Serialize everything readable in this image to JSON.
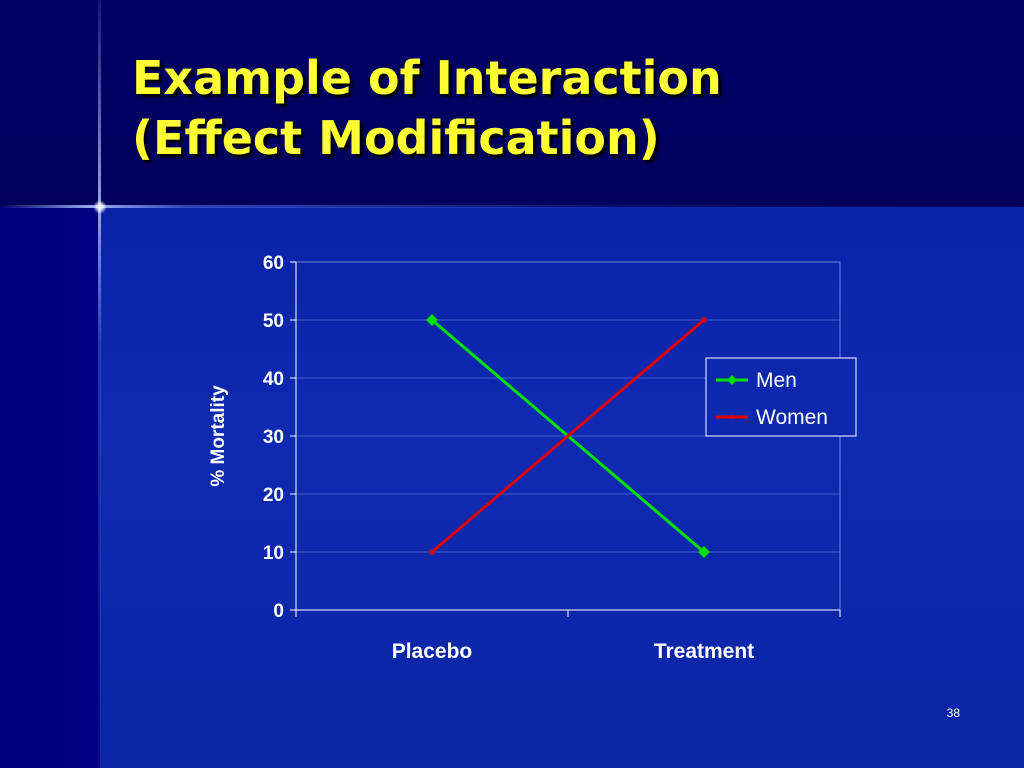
{
  "slide": {
    "title_lines": [
      "Example of Interaction",
      "(Effect Modification)"
    ],
    "page_number": "38"
  },
  "chart_data": {
    "type": "line",
    "categories": [
      "Placebo",
      "Treatment"
    ],
    "series": [
      {
        "name": "Men",
        "values": [
          50,
          10
        ],
        "color": "#00e000",
        "marker": "diamond"
      },
      {
        "name": "Women",
        "values": [
          10,
          50
        ],
        "color": "#e00000",
        "marker": "square"
      }
    ],
    "title": "",
    "xlabel": "",
    "ylabel": "% Mortality",
    "ylim": [
      0,
      60
    ],
    "yticks": [
      0,
      10,
      20,
      30,
      40,
      50,
      60
    ],
    "grid": true,
    "legend": "right"
  }
}
